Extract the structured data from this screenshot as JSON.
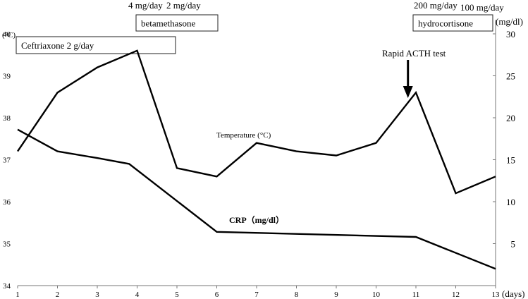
{
  "chart_data": {
    "type": "line",
    "x": [
      1,
      2,
      3,
      4,
      5,
      6,
      7,
      8,
      9,
      10,
      11,
      12,
      13
    ],
    "x_ticks": [
      "1",
      "2",
      "3",
      "4",
      "5",
      "6",
      "7",
      "8",
      "9",
      "10",
      "11",
      "12",
      "13"
    ],
    "x_unit": "(days)",
    "y_left": {
      "unit": "(°C)",
      "lim": [
        34,
        40
      ],
      "ticks": [
        "34",
        "35",
        "36",
        "37",
        "38",
        "39",
        "40"
      ]
    },
    "y_right": {
      "unit": "(mg/dl)",
      "lim": [
        0,
        30
      ],
      "ticks": [
        "5",
        "10",
        "15",
        "20",
        "25",
        "30"
      ]
    },
    "series": [
      {
        "name": "Temperature (°C)",
        "axis": "left",
        "points": [
          [
            1,
            37.2
          ],
          [
            2,
            38.6
          ],
          [
            3,
            39.2
          ],
          [
            4,
            39.6
          ],
          [
            5,
            36.8
          ],
          [
            6,
            36.6
          ],
          [
            7,
            37.4
          ],
          [
            8,
            37.2
          ],
          [
            9,
            37.1
          ],
          [
            10,
            37.4
          ],
          [
            11,
            38.6
          ],
          [
            12,
            36.2
          ],
          [
            13,
            36.6
          ]
        ]
      },
      {
        "name": "CRP（mg/dl）",
        "axis": "right",
        "points": [
          [
            1,
            18.6
          ],
          [
            2,
            16.0
          ],
          [
            3,
            15.2
          ],
          [
            3.8,
            14.5
          ],
          [
            6,
            6.4
          ],
          [
            11,
            5.8
          ],
          [
            13,
            2.0
          ]
        ]
      }
    ],
    "series_labels": [
      {
        "text": "Temperature (°C)",
        "bold": false
      },
      {
        "text": "CRP（mg/dl）",
        "bold": true
      }
    ],
    "treatments": [
      {
        "label": "Ceftriaxone 2 g/day",
        "x_start": 1,
        "x_end": 5
      },
      {
        "label": "betamethasone",
        "x_start": 4,
        "x_end": 6
      },
      {
        "label": "hydrocortisone",
        "x_start": 11,
        "x_end": 12.5
      }
    ],
    "dose_labels": [
      "4 mg/day",
      "2 mg/day",
      "200 mg/day",
      "100 mg/day"
    ],
    "annotation": {
      "text": "Rapid ACTH test",
      "x": 10.8
    }
  }
}
